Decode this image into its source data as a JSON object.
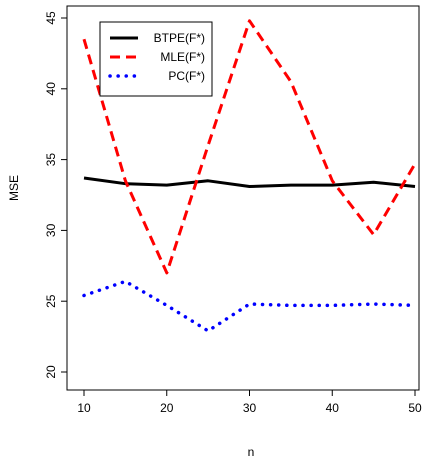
{
  "chart_data": {
    "type": "line",
    "title": "",
    "xlabel": "n",
    "ylabel": "MSE",
    "xlim": [
      10,
      50
    ],
    "ylim": [
      20,
      45
    ],
    "x_ticks": [
      10,
      20,
      30,
      40,
      50
    ],
    "y_ticks": [
      20,
      25,
      30,
      35,
      40,
      45
    ],
    "grid": false,
    "legend_position": "top-left",
    "series": [
      {
        "name": "BTPE(F*)",
        "color": "#000000",
        "style": "solid",
        "x": [
          10,
          15,
          20,
          25,
          30,
          35,
          40,
          45,
          50
        ],
        "values": [
          33.7,
          33.3,
          33.2,
          33.5,
          33.1,
          33.2,
          33.2,
          33.4,
          33.1
        ]
      },
      {
        "name": "MLE(F*)",
        "color": "#ff0000",
        "style": "dashed",
        "x": [
          10,
          15,
          20,
          25,
          30,
          35,
          40,
          45,
          50
        ],
        "values": [
          43.5,
          33.5,
          27.0,
          36.0,
          44.8,
          40.5,
          33.5,
          29.7,
          34.7
        ]
      },
      {
        "name": "PC(F*)",
        "color": "#0000ff",
        "style": "dotted",
        "x": [
          10,
          15,
          20,
          25,
          30,
          35,
          40,
          45,
          50
        ],
        "values": [
          25.4,
          26.4,
          24.7,
          22.9,
          24.8,
          24.7,
          24.7,
          24.8,
          24.7
        ]
      }
    ]
  }
}
